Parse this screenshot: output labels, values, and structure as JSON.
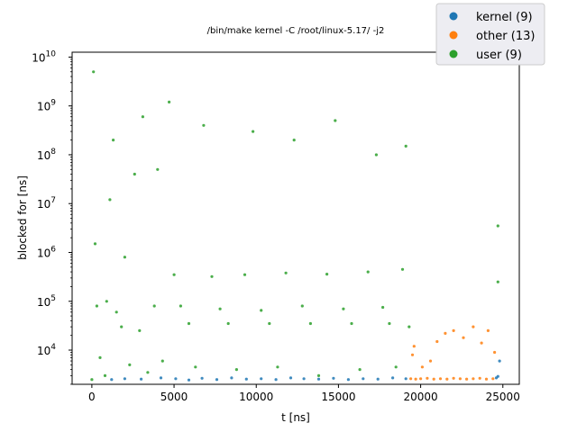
{
  "chart_data": {
    "type": "scatter",
    "title": "/bin/make kernel -C /root/linux-5.17/ -j2",
    "xlabel": "t [ns]",
    "ylabel": "blocked for [ns]",
    "xlim": [
      -1200,
      26000
    ],
    "ylim_log10": [
      3.3,
      10.1
    ],
    "yscale": "log",
    "grid": false,
    "legend_placement": "top-right",
    "x_ticks": [
      {
        "value": 0,
        "label": "0"
      },
      {
        "value": 5000,
        "label": "5000"
      },
      {
        "value": 10000,
        "label": "10000"
      },
      {
        "value": 15000,
        "label": "15000"
      },
      {
        "value": 20000,
        "label": "20000"
      },
      {
        "value": 25000,
        "label": "25000"
      }
    ],
    "y_ticks": [
      {
        "value": 10000,
        "base": "10",
        "exp": "4"
      },
      {
        "value": 100000,
        "base": "10",
        "exp": "5"
      },
      {
        "value": 1000000,
        "base": "10",
        "exp": "6"
      },
      {
        "value": 10000000,
        "base": "10",
        "exp": "7"
      },
      {
        "value": 100000000,
        "base": "10",
        "exp": "8"
      },
      {
        "value": 1000000000,
        "base": "10",
        "exp": "9"
      },
      {
        "value": 10000000000,
        "base": "10",
        "exp": "10"
      }
    ],
    "series": [
      {
        "name": "kernel (9)",
        "legend_label": "kernel (9)",
        "color": "#1f77b4",
        "points": [
          [
            1200,
            2500
          ],
          [
            2000,
            2600
          ],
          [
            3000,
            2550
          ],
          [
            4200,
            2700
          ],
          [
            5100,
            2600
          ],
          [
            5900,
            2450
          ],
          [
            6700,
            2650
          ],
          [
            7600,
            2500
          ],
          [
            8500,
            2700
          ],
          [
            9400,
            2550
          ],
          [
            10300,
            2600
          ],
          [
            11200,
            2500
          ],
          [
            12100,
            2700
          ],
          [
            12900,
            2600
          ],
          [
            13800,
            2550
          ],
          [
            14700,
            2650
          ],
          [
            15600,
            2500
          ],
          [
            16500,
            2600
          ],
          [
            17400,
            2550
          ],
          [
            18300,
            2700
          ],
          [
            19100,
            2600
          ],
          [
            24600,
            2700
          ],
          [
            24700,
            2900
          ],
          [
            24800,
            6000
          ]
        ]
      },
      {
        "name": "other (13)",
        "legend_label": "other (13)",
        "color": "#ff7f0e",
        "points": [
          [
            19400,
            2600
          ],
          [
            19700,
            2550
          ],
          [
            20000,
            2600
          ],
          [
            20400,
            2650
          ],
          [
            20800,
            2550
          ],
          [
            21200,
            2600
          ],
          [
            21600,
            2550
          ],
          [
            22000,
            2650
          ],
          [
            22400,
            2600
          ],
          [
            22800,
            2550
          ],
          [
            23200,
            2600
          ],
          [
            23600,
            2650
          ],
          [
            24000,
            2550
          ],
          [
            24400,
            2600
          ],
          [
            19500,
            8000
          ],
          [
            19600,
            12000
          ],
          [
            20100,
            4500
          ],
          [
            20600,
            6000
          ],
          [
            21000,
            15000
          ],
          [
            21500,
            22000
          ],
          [
            22000,
            25000
          ],
          [
            22600,
            18000
          ],
          [
            23200,
            30000
          ],
          [
            23700,
            14000
          ],
          [
            24100,
            25000
          ],
          [
            24500,
            9000
          ]
        ]
      },
      {
        "name": "user (9)",
        "legend_label": "user (9)",
        "color": "#2ca02c",
        "points": [
          [
            0,
            2500
          ],
          [
            100,
            5000000000
          ],
          [
            200,
            1500000
          ],
          [
            300,
            80000
          ],
          [
            500,
            7000
          ],
          [
            800,
            3000
          ],
          [
            900,
            100000
          ],
          [
            1100,
            12000000
          ],
          [
            1300,
            200000000
          ],
          [
            1500,
            60000
          ],
          [
            1800,
            30000
          ],
          [
            2000,
            800000
          ],
          [
            2300,
            5000
          ],
          [
            2600,
            40000000
          ],
          [
            2900,
            25000
          ],
          [
            3100,
            600000000
          ],
          [
            3400,
            3500
          ],
          [
            3800,
            80000
          ],
          [
            4000,
            50000000
          ],
          [
            4300,
            6000
          ],
          [
            4700,
            1200000000
          ],
          [
            5000,
            350000
          ],
          [
            5400,
            80000
          ],
          [
            5900,
            35000
          ],
          [
            6300,
            4500
          ],
          [
            6800,
            400000000
          ],
          [
            7300,
            320000
          ],
          [
            7800,
            70000
          ],
          [
            8300,
            35000
          ],
          [
            8800,
            4000
          ],
          [
            9300,
            350000
          ],
          [
            9800,
            300000000
          ],
          [
            10300,
            65000
          ],
          [
            10800,
            35000
          ],
          [
            11300,
            4500
          ],
          [
            11800,
            380000
          ],
          [
            12300,
            200000000
          ],
          [
            12800,
            80000
          ],
          [
            13300,
            35000
          ],
          [
            13800,
            3000
          ],
          [
            14300,
            360000
          ],
          [
            14800,
            500000000
          ],
          [
            15300,
            70000
          ],
          [
            15800,
            35000
          ],
          [
            16300,
            4000
          ],
          [
            16800,
            400000
          ],
          [
            17300,
            100000000
          ],
          [
            17700,
            75000
          ],
          [
            18100,
            35000
          ],
          [
            18500,
            4500
          ],
          [
            18900,
            450000
          ],
          [
            19100,
            150000000
          ],
          [
            19300,
            30000
          ],
          [
            24700,
            3500000
          ],
          [
            24700,
            250000
          ]
        ]
      }
    ]
  }
}
